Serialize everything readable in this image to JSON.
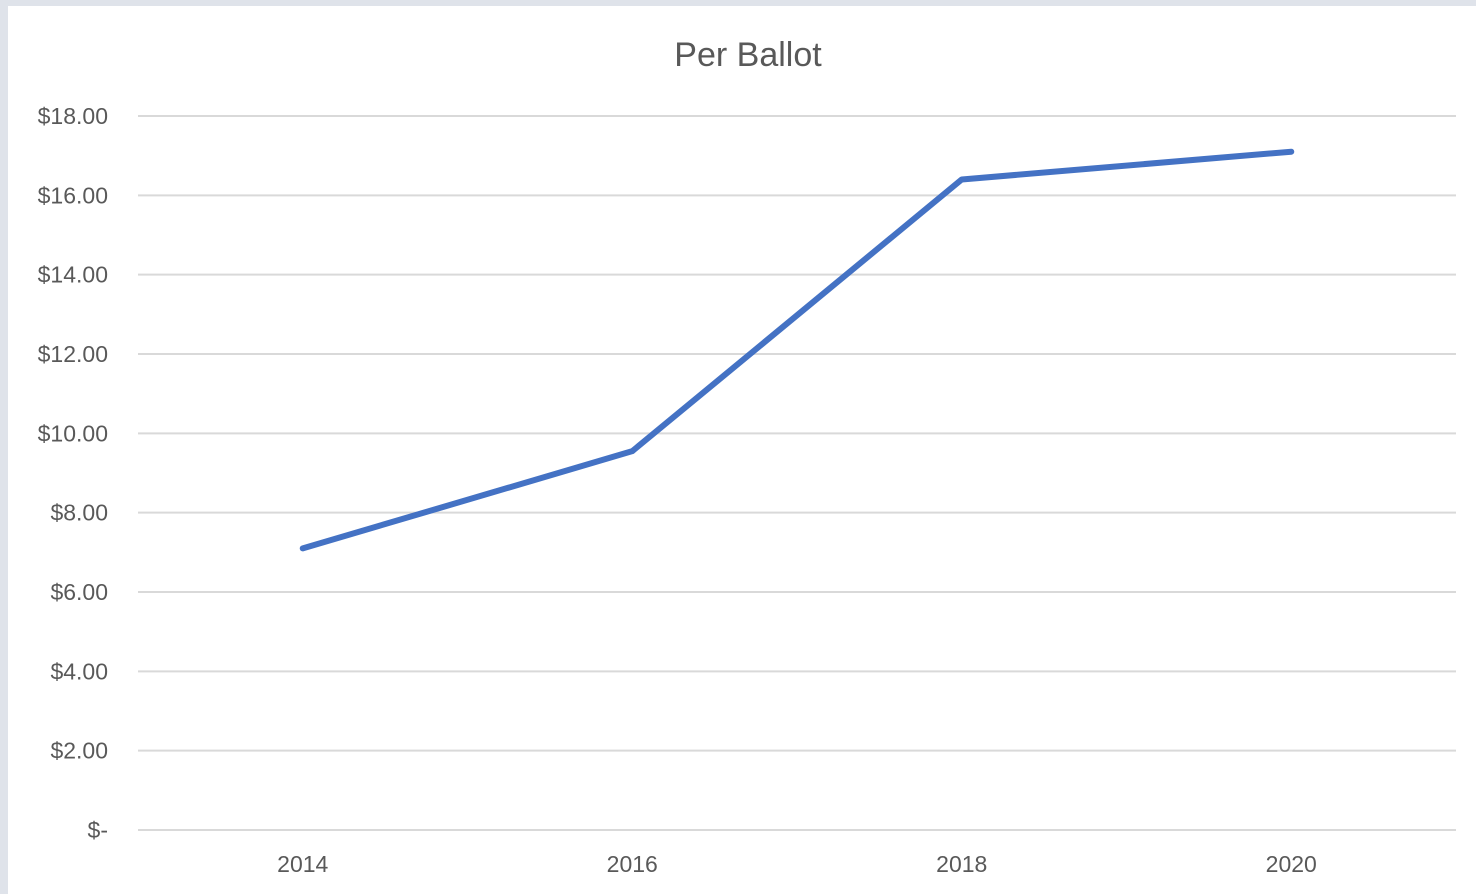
{
  "chart_data": {
    "type": "line",
    "title": "Per Ballot",
    "xlabel": "",
    "ylabel": "",
    "categories": [
      "2014",
      "2016",
      "2018",
      "2020"
    ],
    "series": [
      {
        "values": [
          7.1,
          9.55,
          16.4,
          17.1
        ]
      }
    ],
    "ylim": [
      0,
      18
    ],
    "y_ticks": [
      0,
      2,
      4,
      6,
      8,
      10,
      12,
      14,
      16,
      18
    ],
    "y_tick_labels": [
      "$-",
      "$2.00",
      "$4.00",
      "$6.00",
      "$8.00",
      "$10.00",
      "$12.00",
      "$14.00",
      "$16.00",
      "$18.00"
    ],
    "grid": true,
    "legend": "none",
    "colors": {
      "series": "#4472c4",
      "grid": "#d9d9d9",
      "text": "#595959"
    }
  }
}
